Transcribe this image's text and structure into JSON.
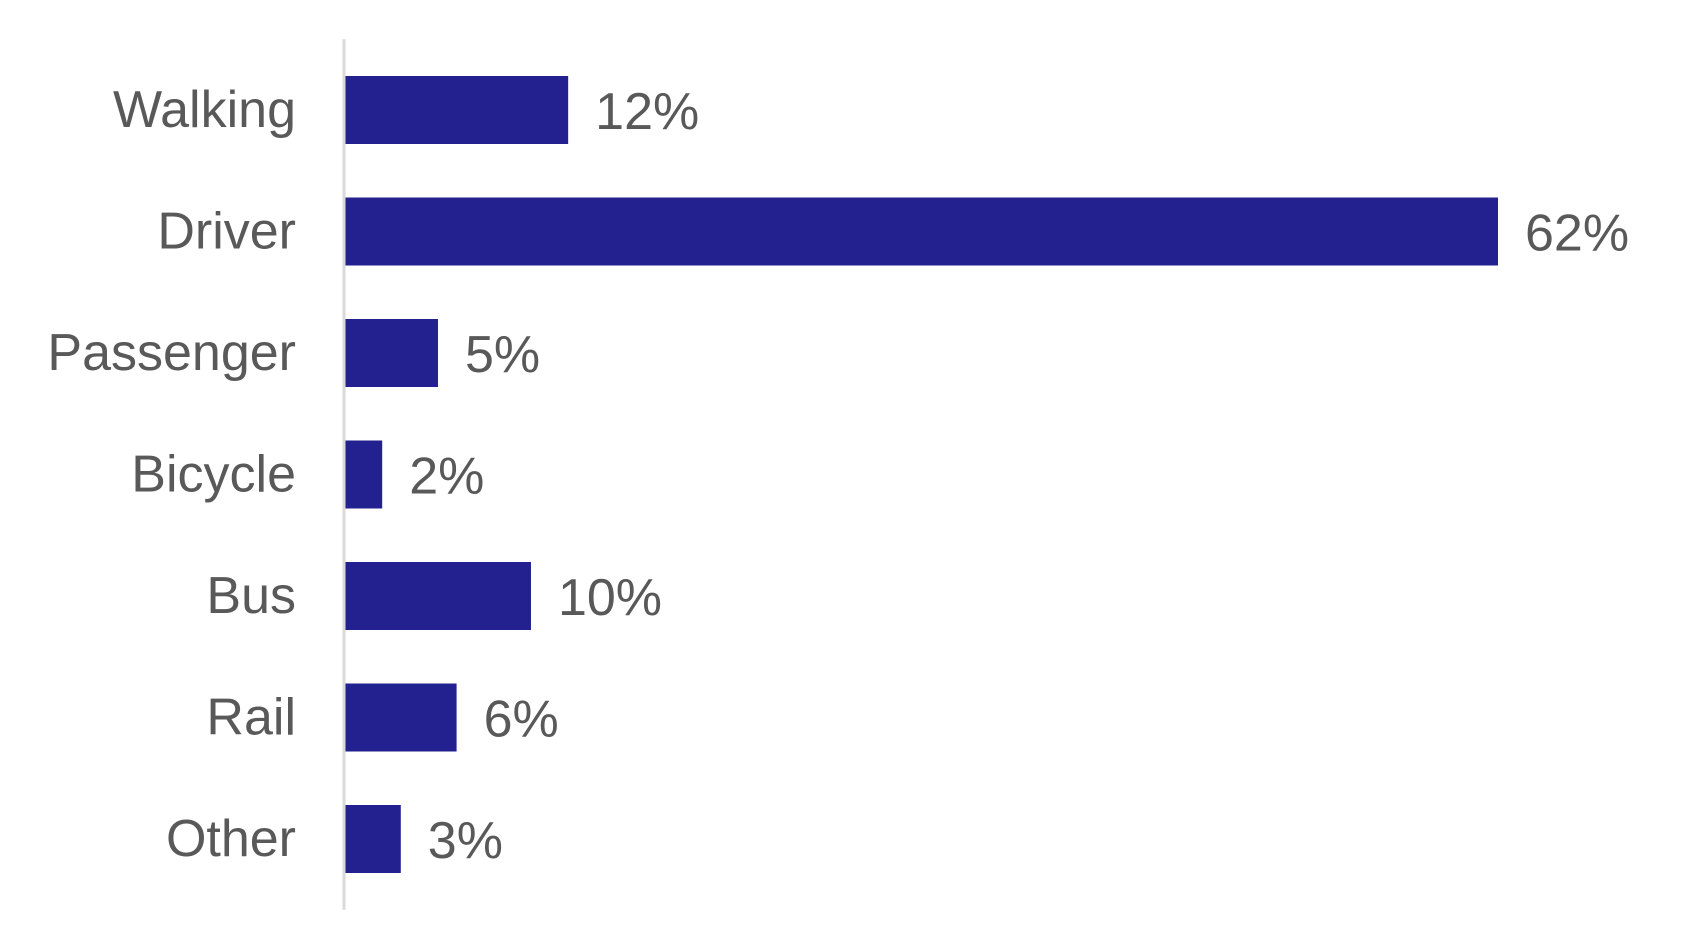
{
  "chart_data": {
    "type": "bar",
    "orientation": "horizontal",
    "categories": [
      "Walking",
      "Driver",
      "Passenger",
      "Bicycle",
      "Bus",
      "Rail",
      "Other"
    ],
    "values": [
      12,
      62,
      5,
      2,
      10,
      6,
      3
    ],
    "value_labels": [
      "12%",
      "62%",
      "5%",
      "2%",
      "10%",
      "6%",
      "3%"
    ],
    "title": "",
    "xlabel": "",
    "ylabel": "",
    "xlim": [
      0,
      62
    ],
    "grid": false,
    "legend": "none",
    "bar_color": "#22218f",
    "axis_color": "#d9d9d9",
    "text_color": "#595959"
  }
}
